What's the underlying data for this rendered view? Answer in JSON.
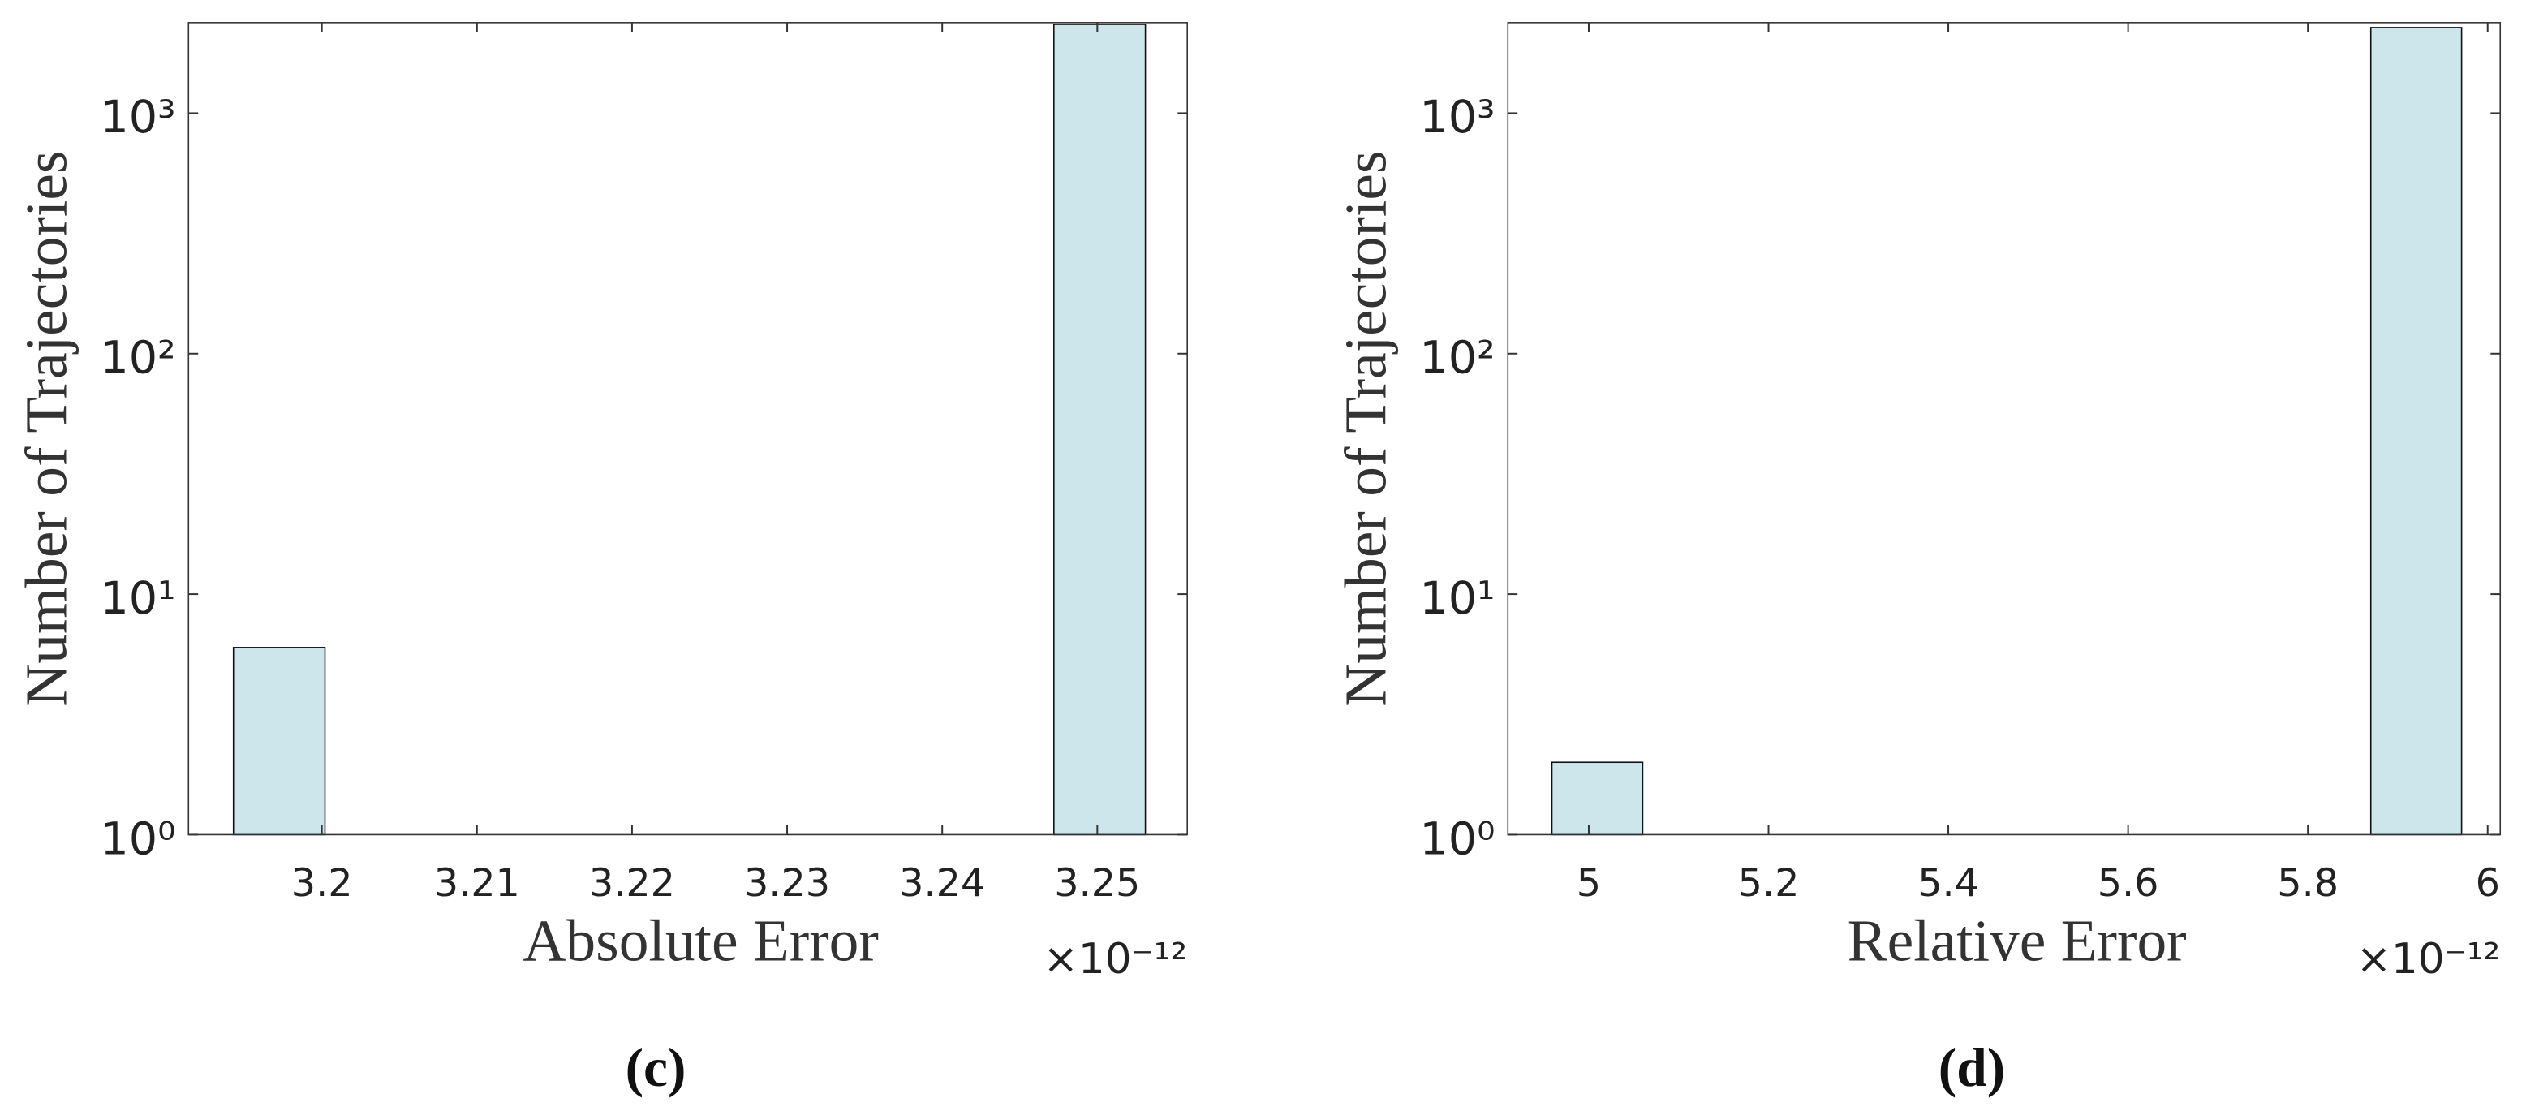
{
  "chart_data": [
    {
      "type": "histogram",
      "xlabel": "Absolute Error",
      "ylabel": "Number of Trajectories",
      "x_multiplier": "×10⁻¹²",
      "caption": "(c)",
      "bins": [
        3.1943,
        3.2002,
        3.2061,
        3.212,
        3.2178,
        3.2237,
        3.2296,
        3.2355,
        3.2414,
        3.2472,
        3.2531
      ],
      "values": [
        6,
        0,
        0,
        0,
        0,
        0,
        0,
        0,
        0,
        2340
      ],
      "color": "#cde6ec",
      "log_y": true,
      "xlim": [
        3.1914,
        3.2558
      ],
      "xticks": [
        3.2,
        3.21,
        3.22,
        3.23,
        3.24,
        3.25
      ],
      "ylim": [
        1,
        2380
      ],
      "yticks": [
        {
          "value": 1,
          "label": "10⁰"
        },
        {
          "value": 10,
          "label": "10¹"
        },
        {
          "value": 100,
          "label": "10²"
        },
        {
          "value": 1000,
          "label": "10³"
        }
      ]
    },
    {
      "type": "histogram",
      "xlabel": "Relative Error",
      "ylabel": "Number of Trajectories",
      "x_multiplier": "×10⁻¹²",
      "caption": "(d)",
      "bins": [
        4.959,
        5.06,
        5.161,
        5.263,
        5.364,
        5.465,
        5.566,
        5.667,
        5.769,
        5.87,
        5.971
      ],
      "values": [
        2,
        0,
        0,
        0,
        0,
        0,
        0,
        0,
        0,
        2270
      ],
      "color": "#cde6ec",
      "log_y": true,
      "xlim": [
        4.91,
        6.014
      ],
      "xticks": [
        5,
        5.2,
        5.4,
        5.6,
        5.8,
        6
      ],
      "ylim": [
        1,
        2380
      ],
      "yticks": [
        {
          "value": 1,
          "label": "10⁰"
        },
        {
          "value": 10,
          "label": "10¹"
        },
        {
          "value": 100,
          "label": "10²"
        },
        {
          "value": 1000,
          "label": "10³"
        }
      ]
    }
  ]
}
